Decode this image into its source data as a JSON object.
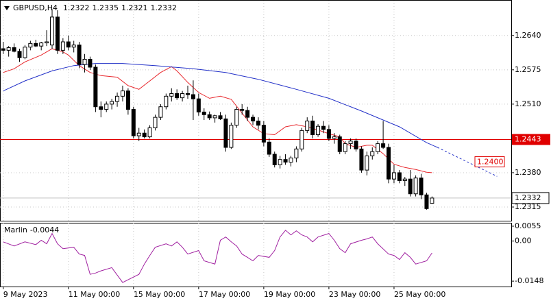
{
  "chart_data": [
    {
      "type": "candlestick",
      "title": "GBPUSD,H4",
      "open": [
        1.2615,
        1.2612,
        1.2617,
        1.261,
        1.2598,
        1.2618,
        1.2625,
        1.262,
        1.2626,
        1.2622,
        1.2675,
        1.2612,
        1.2628,
        1.2618,
        1.2622,
        1.2585,
        1.2595,
        1.258,
        1.2505,
        1.25,
        1.251,
        1.2515,
        1.2525,
        1.2535,
        1.25,
        1.245,
        1.2455,
        1.2448,
        1.2465,
        1.2485,
        1.2505,
        1.2525,
        1.253,
        1.2522,
        1.253,
        1.2528,
        1.252,
        1.2495,
        1.249,
        1.2484,
        1.2488,
        1.2482,
        1.2428,
        1.247,
        1.25,
        1.2498,
        1.2485,
        1.2478,
        1.247,
        1.2438,
        1.2415,
        1.2395,
        1.2405,
        1.24,
        1.2408,
        1.2425,
        1.246,
        1.2478,
        1.2452,
        1.2468,
        1.2462,
        1.2445,
        1.2448,
        1.242,
        1.2435,
        1.244,
        1.2425,
        1.2385,
        1.2412,
        1.242,
        1.2435,
        1.2428,
        1.2368,
        1.238,
        1.2365,
        1.2368,
        1.234,
        1.237,
        1.2338,
        1.2322
      ],
      "high": [
        1.2628,
        1.262,
        1.2625,
        1.2615,
        1.2622,
        1.263,
        1.2632,
        1.2628,
        1.265,
        1.269,
        1.2688,
        1.2635,
        1.264,
        1.263,
        1.2628,
        1.2605,
        1.26,
        1.2585,
        1.2515,
        1.2515,
        1.252,
        1.2532,
        1.2545,
        1.254,
        1.2505,
        1.2465,
        1.2462,
        1.247,
        1.249,
        1.251,
        1.253,
        1.254,
        1.2538,
        1.2535,
        1.2545,
        1.2555,
        1.253,
        1.2502,
        1.2496,
        1.249,
        1.2495,
        1.249,
        1.2475,
        1.2505,
        1.251,
        1.2505,
        1.249,
        1.2485,
        1.2478,
        1.2445,
        1.242,
        1.2412,
        1.2415,
        1.2412,
        1.243,
        1.2465,
        1.2485,
        1.2488,
        1.2472,
        1.2478,
        1.247,
        1.2455,
        1.2452,
        1.244,
        1.2445,
        1.2445,
        1.243,
        1.242,
        1.2428,
        1.244,
        1.2478,
        1.2435,
        1.2395,
        1.2385,
        1.2372,
        1.2385,
        1.2375,
        1.2378,
        1.2342,
        1.2335
      ],
      "low": [
        1.2605,
        1.26,
        1.2608,
        1.259,
        1.2595,
        1.2612,
        1.2618,
        1.2612,
        1.262,
        1.2615,
        1.2605,
        1.2605,
        1.2612,
        1.2608,
        1.2578,
        1.257,
        1.2575,
        1.2495,
        1.2485,
        1.2495,
        1.25,
        1.2505,
        1.2515,
        1.249,
        1.2445,
        1.244,
        1.2445,
        1.2445,
        1.246,
        1.248,
        1.25,
        1.2515,
        1.2518,
        1.2515,
        1.252,
        1.248,
        1.2488,
        1.248,
        1.248,
        1.2475,
        1.248,
        1.242,
        1.2425,
        1.2465,
        1.249,
        1.2478,
        1.247,
        1.2462,
        1.243,
        1.241,
        1.239,
        1.2388,
        1.2395,
        1.2392,
        1.24,
        1.242,
        1.2455,
        1.2445,
        1.2448,
        1.2455,
        1.244,
        1.2435,
        1.2415,
        1.2415,
        1.2425,
        1.242,
        1.238,
        1.2375,
        1.2405,
        1.2415,
        1.2425,
        1.236,
        1.236,
        1.236,
        1.2355,
        1.2335,
        1.2335,
        1.233,
        1.231,
        1.2321
      ],
      "close": [
        1.2612,
        1.2617,
        1.261,
        1.2598,
        1.2618,
        1.2625,
        1.262,
        1.2626,
        1.2628,
        1.2675,
        1.2612,
        1.2628,
        1.2618,
        1.2622,
        1.2585,
        1.2595,
        1.258,
        1.2505,
        1.25,
        1.251,
        1.2515,
        1.2525,
        1.2535,
        1.25,
        1.245,
        1.2455,
        1.2448,
        1.2465,
        1.2485,
        1.2505,
        1.2525,
        1.253,
        1.2522,
        1.253,
        1.2528,
        1.252,
        1.2495,
        1.249,
        1.2484,
        1.2488,
        1.2482,
        1.2428,
        1.247,
        1.25,
        1.2498,
        1.2485,
        1.2478,
        1.247,
        1.2438,
        1.2415,
        1.2395,
        1.2405,
        1.24,
        1.2408,
        1.2425,
        1.246,
        1.2478,
        1.2452,
        1.2468,
        1.2462,
        1.2445,
        1.2448,
        1.242,
        1.2435,
        1.244,
        1.2425,
        1.2385,
        1.2412,
        1.242,
        1.2435,
        1.2428,
        1.2368,
        1.238,
        1.2365,
        1.2368,
        1.234,
        1.237,
        1.2338,
        1.2312,
        1.2332
      ],
      "up_color": "#ffffff",
      "down_color": "#000000",
      "lines": [
        {
          "color": "#e8262b",
          "x": [
            0,
            2,
            4,
            7,
            9,
            11,
            12,
            14,
            16,
            18,
            21,
            23,
            25,
            27,
            29,
            31,
            32,
            34,
            36,
            38,
            40,
            42,
            44,
            46,
            48,
            50,
            52,
            54,
            56,
            58,
            60,
            62,
            63,
            65,
            67,
            68,
            70,
            72,
            74,
            76,
            78,
            79
          ],
          "values": [
            1.257,
            1.2577,
            1.259,
            1.2603,
            1.2615,
            1.2609,
            1.2603,
            1.2583,
            1.257,
            1.2564,
            1.2561,
            1.2545,
            1.2538,
            1.2554,
            1.257,
            1.2581,
            1.2573,
            1.2551,
            1.2532,
            1.2521,
            1.2525,
            1.2519,
            1.2493,
            1.2467,
            1.2454,
            1.2452,
            1.2467,
            1.2471,
            1.2467,
            1.2461,
            1.2454,
            1.2448,
            1.2435,
            1.2428,
            1.2432,
            1.2432,
            1.2416,
            1.2396,
            1.239,
            1.2386,
            1.2381,
            1.238
          ]
        },
        {
          "color": "#2230c8",
          "x": [
            0,
            4,
            9,
            13,
            17,
            22,
            28,
            35,
            41,
            47,
            54,
            60,
            66,
            73,
            78,
            80
          ],
          "values": [
            1.2535,
            1.2554,
            1.2573,
            1.2583,
            1.2587,
            1.2587,
            1.2583,
            1.2577,
            1.257,
            1.2557,
            1.2538,
            1.2521,
            1.2497,
            1.2467,
            1.2437,
            1.2428
          ]
        },
        {
          "color": "#2230c8",
          "dash": true,
          "x": [
            80,
            91
          ],
          "values": [
            1.2428,
            1.2373
          ]
        }
      ],
      "hlines": [
        {
          "value": 1.2443,
          "color": "#e00000"
        }
      ],
      "annotations": [
        {
          "value": 1.24,
          "label": "1.2400",
          "color": "#e00000"
        }
      ],
      "xlim": [
        -0.6,
        93.6
      ],
      "ylim": [
        1.2289,
        1.2706
      ],
      "yticks": [
        {
          "value": 1.264,
          "label": "1.2640"
        },
        1.2575,
        {
          "value": 1.251,
          "label": "1.2510"
        },
        {
          "value": 1.238,
          "label": "1.2380"
        },
        1.2315
      ],
      "xticks": [
        {
          "value": 0,
          "label": "9 May 2023"
        },
        {
          "value": 12,
          "label": "11 May 00:00"
        },
        {
          "value": 24,
          "label": "15 May 00:00"
        },
        {
          "value": 36,
          "label": "17 May 00:00"
        },
        {
          "value": 48,
          "label": "19 May 00:00"
        },
        {
          "value": 60,
          "label": "23 May 00:00"
        },
        {
          "value": 72,
          "label": "25 May 00:00"
        }
      ],
      "grid": true
    },
    {
      "type": "line",
      "title": "Marlin",
      "color": "#a020a0",
      "x": [
        0,
        2,
        4,
        6,
        7,
        8,
        9,
        10,
        11,
        13,
        14,
        15,
        16,
        17,
        18,
        20,
        22,
        23,
        25,
        26,
        27,
        28,
        30,
        31,
        32,
        33,
        34,
        36,
        37,
        39,
        40,
        41,
        42,
        43,
        44,
        45,
        46,
        47,
        49,
        50,
        51,
        52,
        53,
        54,
        55,
        56,
        57,
        58,
        60,
        61,
        62,
        63,
        64,
        66,
        67,
        68,
        69,
        71,
        72,
        73,
        74,
        75,
        76,
        78,
        79
      ],
      "values": [
        -0.0003,
        -0.0018,
        -0.0003,
        -0.0013,
        0.0003,
        -0.001,
        0.0028,
        -0.001,
        -0.0028,
        -0.0023,
        -0.0048,
        -0.0053,
        -0.0123,
        -0.0118,
        -0.011,
        -0.0098,
        -0.0153,
        -0.0143,
        -0.0123,
        -0.0085,
        -0.0053,
        -0.0023,
        -0.001,
        -0.0018,
        -0.0003,
        -0.0023,
        -0.0048,
        -0.0035,
        -0.0073,
        -0.0085,
        0.0003,
        0.0015,
        -0.0003,
        -0.0018,
        -0.0048,
        -0.006,
        -0.0073,
        -0.0053,
        -0.006,
        -0.0035,
        0.0015,
        0.004,
        0.0023,
        0.0038,
        0.0023,
        0.0015,
        -0.0003,
        0.0015,
        0.0028,
        0.0003,
        -0.0028,
        -0.0043,
        -0.001,
        0.0003,
        0.0008,
        0.0015,
        -0.001,
        -0.0048,
        -0.0053,
        -0.0068,
        -0.0043,
        -0.006,
        -0.0085,
        -0.0073,
        -0.0044
      ],
      "xlim": [
        -0.6,
        93.6
      ],
      "ylim": [
        -0.0168,
        0.0065
      ],
      "yticks": [
        0.0055,
        {
          "value": 0,
          "label": "0.00"
        },
        -0.0148
      ]
    }
  ]
}
